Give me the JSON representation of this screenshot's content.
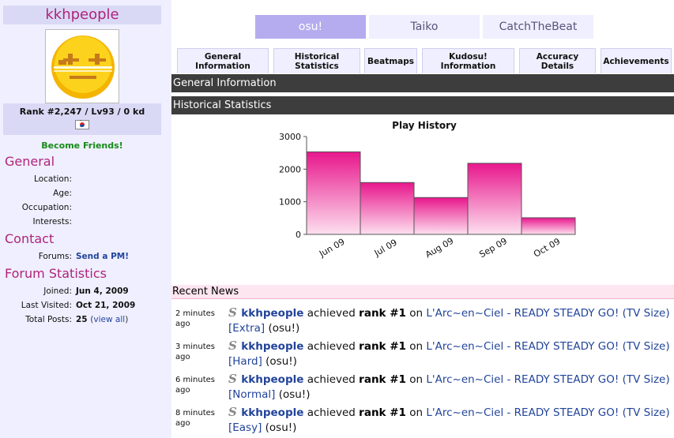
{
  "profile": {
    "username": "kkhpeople",
    "rank_line": "Rank #2,247 / Lv93 / 0 kd",
    "become_friends": "Become Friends!"
  },
  "general": {
    "heading": "General",
    "rows": [
      {
        "label": "Location:",
        "value": ""
      },
      {
        "label": "Age:",
        "value": ""
      },
      {
        "label": "Occupation:",
        "value": ""
      },
      {
        "label": "Interests:",
        "value": ""
      }
    ]
  },
  "contact": {
    "heading": "Contact",
    "forums_label": "Forums:",
    "forums_link": "Send a PM!"
  },
  "forum_stats": {
    "heading": "Forum Statistics",
    "joined_label": "Joined:",
    "joined_value": "Jun 4, 2009",
    "last_visited_label": "Last Visited:",
    "last_visited_value": "Oct 21, 2009",
    "total_posts_label": "Total Posts:",
    "total_posts_value": "25",
    "view_all_open": "(",
    "view_all": "view all",
    "view_all_close": ")"
  },
  "mode_tabs": [
    "osu!",
    "Taiko",
    "CatchTheBeat"
  ],
  "section_tabs": [
    {
      "line1": "General",
      "line2": "Information"
    },
    {
      "line1": "Historical",
      "line2": "Statistics"
    },
    {
      "line1": "Beatmaps",
      "line2": ""
    },
    {
      "line1": "Kudosu!",
      "line2": "Information"
    },
    {
      "line1": "Accuracy",
      "line2": "Details"
    },
    {
      "line1": "Achievements",
      "line2": ""
    }
  ],
  "sections": {
    "general_info": "General Information",
    "historical_stats": "Historical Statistics",
    "recent_news": "Recent News"
  },
  "chart_data": {
    "type": "bar",
    "title": "Play History",
    "categories": [
      "Jun 09",
      "Jul 09",
      "Aug 09",
      "Sep 09",
      "Oct 09"
    ],
    "values": [
      2530,
      1590,
      1130,
      2180,
      510
    ],
    "ylim": [
      0,
      3000
    ],
    "yticks": [
      0,
      1000,
      2000,
      3000
    ],
    "xlabel": "",
    "ylabel": "",
    "bar_color": "#e8168c",
    "grid": false
  },
  "news": [
    {
      "time": "2 minutes ago",
      "user": "kkhpeople",
      "achieved": "achieved",
      "rank": "rank #1",
      "on": "on",
      "map": "L'Arc~en~Ciel - READY STEADY GO! (TV Size) [Extra]",
      "mode": "(osu!)"
    },
    {
      "time": "3 minutes ago",
      "user": "kkhpeople",
      "achieved": "achieved",
      "rank": "rank #1",
      "on": "on",
      "map": "L'Arc~en~Ciel - READY STEADY GO! (TV Size) [Hard]",
      "mode": "(osu!)"
    },
    {
      "time": "6 minutes ago",
      "user": "kkhpeople",
      "achieved": "achieved",
      "rank": "rank #1",
      "on": "on",
      "map": "L'Arc~en~Ciel - READY STEADY GO! (TV Size) [Normal]",
      "mode": "(osu!)"
    },
    {
      "time": "8 minutes ago",
      "user": "kkhpeople",
      "achieved": "achieved",
      "rank": "rank #1",
      "on": "on",
      "map": "L'Arc~en~Ciel - READY STEADY GO! (TV Size) [Easy]",
      "mode": "(osu!)"
    }
  ],
  "colors": {
    "accent": "#b0237a",
    "sidebar_bg": "#efefff",
    "link": "#22449a",
    "section_bar": "#3d3d3d",
    "active_mode_tab": "#b5acef"
  }
}
